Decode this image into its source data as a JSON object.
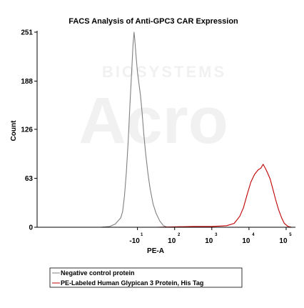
{
  "chart_data": {
    "type": "line",
    "title": "FACS Analysis of Anti-GPC3 CAR Expression",
    "xlabel": "PE-A",
    "ylabel": "Count",
    "ylim": [
      0,
      251
    ],
    "xlim_log": [
      -1.7,
      5.25
    ],
    "yticks": [
      {
        "value": 0,
        "label": "0"
      },
      {
        "value": 63,
        "label": "63"
      },
      {
        "value": 126,
        "label": "126"
      },
      {
        "value": 188,
        "label": "188"
      },
      {
        "value": 251,
        "label": "251"
      }
    ],
    "xticks": [
      {
        "value": 1,
        "base": "-10",
        "exp": "1"
      },
      {
        "value": 2,
        "base": "10",
        "exp": "2"
      },
      {
        "value": 3,
        "base": "10",
        "exp": "3"
      },
      {
        "value": 4,
        "base": "10",
        "exp": "4"
      },
      {
        "value": 5,
        "base": "10",
        "exp": "5"
      }
    ],
    "legend_position": "bottom-right",
    "watermark": "Acro BIOSYSTEMS",
    "series": [
      {
        "name": "Negative control protein",
        "color": "#808080",
        "points": [
          [
            -1.2,
            0
          ],
          [
            -0.6,
            0
          ],
          [
            0.0,
            0
          ],
          [
            0.25,
            1
          ],
          [
            0.4,
            4
          ],
          [
            0.55,
            12
          ],
          [
            0.6,
            20
          ],
          [
            0.65,
            40
          ],
          [
            0.7,
            70
          ],
          [
            0.75,
            110
          ],
          [
            0.8,
            160
          ],
          [
            0.85,
            205
          ],
          [
            0.88,
            235
          ],
          [
            0.91,
            251
          ],
          [
            0.93,
            240
          ],
          [
            0.96,
            222
          ],
          [
            1.0,
            200
          ],
          [
            1.04,
            185
          ],
          [
            1.08,
            170
          ],
          [
            1.12,
            150
          ],
          [
            1.17,
            120
          ],
          [
            1.22,
            95
          ],
          [
            1.28,
            70
          ],
          [
            1.34,
            50
          ],
          [
            1.42,
            30
          ],
          [
            1.5,
            18
          ],
          [
            1.6,
            8
          ],
          [
            1.7,
            2
          ],
          [
            1.8,
            0
          ],
          [
            5.15,
            0
          ]
        ]
      },
      {
        "name": "PE-Labeled Human Glypican 3 Protein, His Tag",
        "color": "#c00000",
        "points": [
          [
            -0.6,
            0
          ],
          [
            1.5,
            0
          ],
          [
            2.5,
            1
          ],
          [
            3.0,
            1
          ],
          [
            3.4,
            2
          ],
          [
            3.6,
            5
          ],
          [
            3.75,
            14
          ],
          [
            3.85,
            25
          ],
          [
            3.95,
            42
          ],
          [
            4.05,
            58
          ],
          [
            4.15,
            68
          ],
          [
            4.25,
            74
          ],
          [
            4.32,
            76
          ],
          [
            4.38,
            81
          ],
          [
            4.45,
            75
          ],
          [
            4.5,
            70
          ],
          [
            4.57,
            62
          ],
          [
            4.65,
            48
          ],
          [
            4.72,
            35
          ],
          [
            4.8,
            22
          ],
          [
            4.88,
            12
          ],
          [
            4.95,
            5
          ],
          [
            5.05,
            1
          ],
          [
            5.15,
            0
          ]
        ]
      }
    ]
  }
}
